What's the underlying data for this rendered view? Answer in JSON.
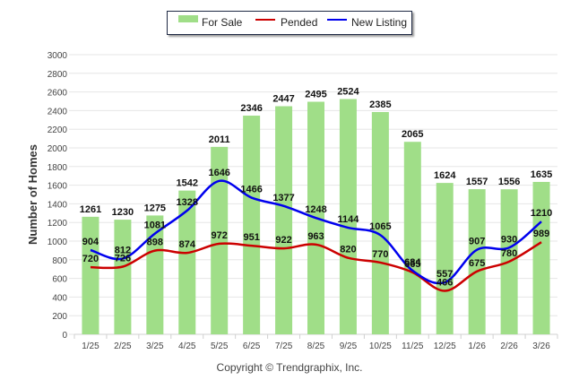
{
  "chart_data": {
    "type": "bar",
    "title": "",
    "xlabel": "",
    "ylabel": "Number of Homes",
    "ylim": [
      0,
      3000
    ],
    "yticks": [
      0,
      200,
      400,
      600,
      800,
      1000,
      1200,
      1400,
      1600,
      1800,
      2000,
      2200,
      2400,
      2600,
      2800,
      3000
    ],
    "grid": true,
    "legend_position": "top-center",
    "categories": [
      "1/25",
      "2/25",
      "3/25",
      "4/25",
      "5/25",
      "6/25",
      "7/25",
      "8/25",
      "9/25",
      "10/25",
      "11/25",
      "12/25",
      "1/26",
      "2/26",
      "3/26"
    ],
    "series": [
      {
        "name": "For Sale",
        "type": "bar",
        "color": "#a0de88",
        "values": [
          1261,
          1230,
          1275,
          1542,
          2011,
          2346,
          2447,
          2495,
          2524,
          2385,
          2065,
          1624,
          1557,
          1556,
          1635
        ]
      },
      {
        "name": "Pended",
        "type": "line",
        "color": "#cc0000",
        "values": [
          720,
          726,
          898,
          874,
          972,
          951,
          922,
          963,
          820,
          770,
          665,
          466,
          675,
          780,
          989
        ]
      },
      {
        "name": "New Listing",
        "type": "line",
        "color": "#0000ee",
        "values": [
          904,
          812,
          1081,
          1328,
          1646,
          1466,
          1377,
          1248,
          1144,
          1065,
          684,
          557,
          907,
          930,
          1210
        ]
      }
    ]
  },
  "legend": {
    "items": [
      {
        "label": "For Sale",
        "color": "#a0de88"
      },
      {
        "label": "Pended",
        "color": "#cc0000"
      },
      {
        "label": "New Listing",
        "color": "#0000ee"
      }
    ]
  },
  "footer": {
    "copyright": "Copyright © Trendgraphix, Inc."
  }
}
